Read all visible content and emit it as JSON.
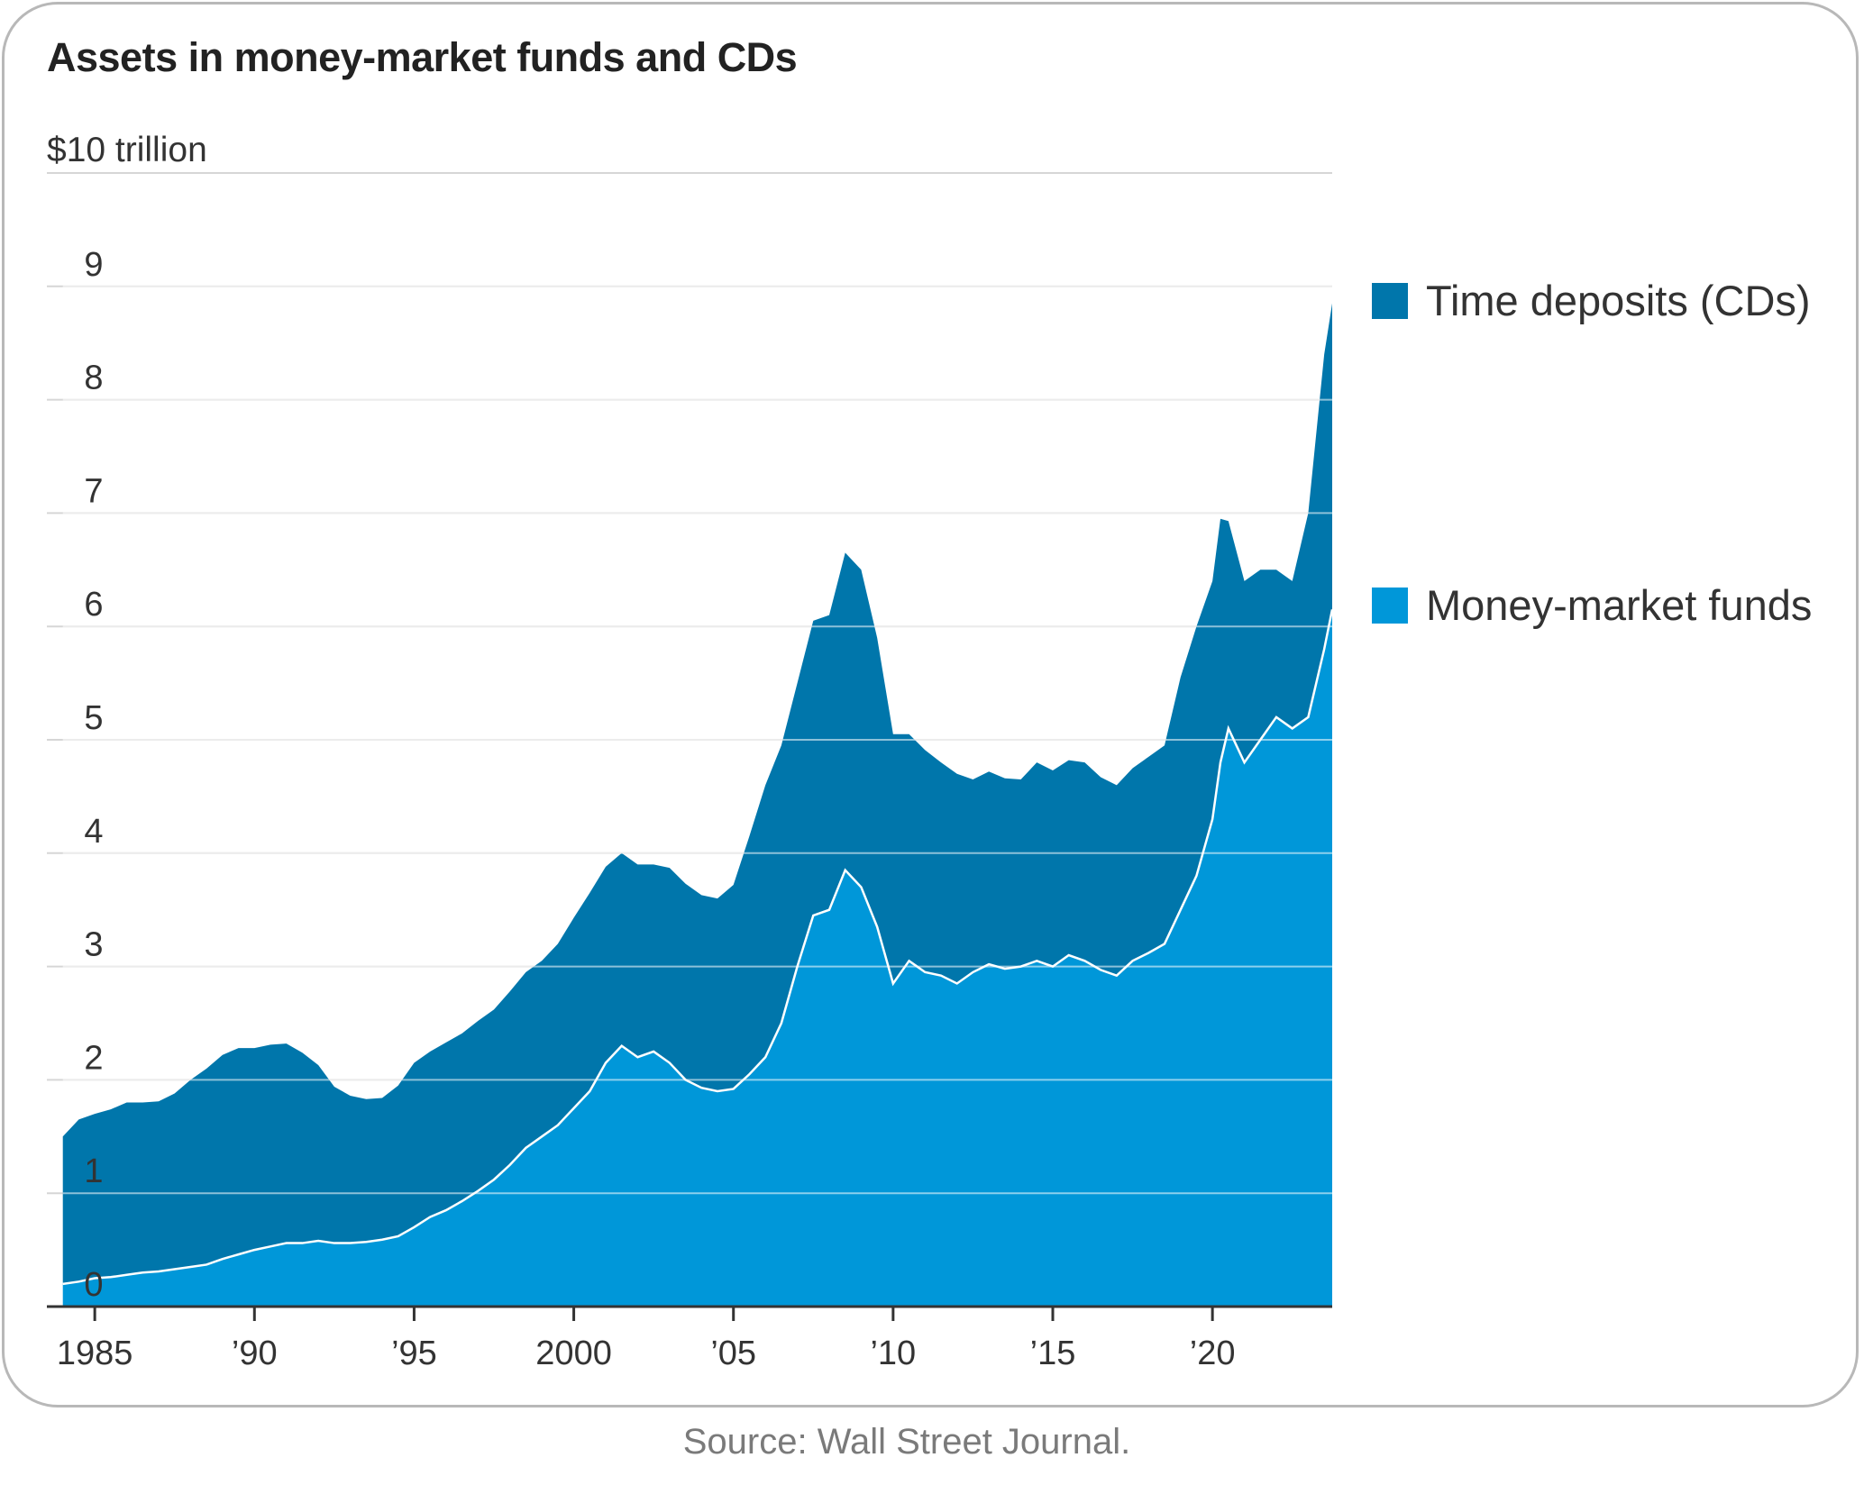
{
  "chart_data": {
    "type": "area",
    "title": "Assets in money-market funds and CDs",
    "unit_label": "$10 trillion",
    "y_tick_labels": [
      "0",
      "1",
      "2",
      "3",
      "4",
      "5",
      "6",
      "7",
      "8",
      "9"
    ],
    "x_tick_labels": [
      "1985",
      "’90",
      "’95",
      "2000",
      "’05",
      "’10",
      "’15",
      "’20"
    ],
    "x_ticks": [
      1985,
      1990,
      1995,
      2000,
      2005,
      2010,
      2015,
      2020
    ],
    "xlim": [
      1983.5,
      2023.75
    ],
    "ylim": [
      0,
      10
    ],
    "stacked": true,
    "grid": true,
    "legend_position": "right",
    "x": [
      1984.0,
      1984.5,
      1985.0,
      1985.5,
      1986.0,
      1986.5,
      1987.0,
      1987.5,
      1988.0,
      1988.5,
      1989.0,
      1989.5,
      1990.0,
      1990.5,
      1991.0,
      1991.5,
      1992.0,
      1992.5,
      1993.0,
      1993.5,
      1994.0,
      1994.5,
      1995.0,
      1995.5,
      1996.0,
      1996.5,
      1997.0,
      1997.5,
      1998.0,
      1998.5,
      1999.0,
      1999.5,
      2000.0,
      2000.5,
      2001.0,
      2001.5,
      2002.0,
      2002.5,
      2003.0,
      2003.5,
      2004.0,
      2004.5,
      2005.0,
      2005.5,
      2006.0,
      2006.5,
      2007.0,
      2007.5,
      2008.0,
      2008.5,
      2009.0,
      2009.5,
      2010.0,
      2010.5,
      2011.0,
      2011.5,
      2012.0,
      2012.5,
      2013.0,
      2013.5,
      2014.0,
      2014.5,
      2015.0,
      2015.5,
      2016.0,
      2016.5,
      2017.0,
      2017.5,
      2018.0,
      2018.5,
      2019.0,
      2019.5,
      2020.0,
      2020.25,
      2020.5,
      2021.0,
      2021.5,
      2022.0,
      2022.5,
      2023.0,
      2023.5,
      2023.75
    ],
    "series": [
      {
        "name": "Money-market funds",
        "color": "#0097d9",
        "values": [
          0.2,
          0.22,
          0.25,
          0.26,
          0.28,
          0.3,
          0.31,
          0.33,
          0.35,
          0.37,
          0.42,
          0.46,
          0.5,
          0.53,
          0.56,
          0.56,
          0.58,
          0.56,
          0.56,
          0.57,
          0.59,
          0.62,
          0.7,
          0.79,
          0.85,
          0.93,
          1.02,
          1.12,
          1.25,
          1.4,
          1.5,
          1.6,
          1.75,
          1.9,
          2.15,
          2.3,
          2.2,
          2.25,
          2.15,
          2.0,
          1.93,
          1.9,
          1.92,
          2.05,
          2.2,
          2.5,
          3.0,
          3.45,
          3.5,
          3.85,
          3.7,
          3.35,
          2.85,
          3.05,
          2.95,
          2.92,
          2.85,
          2.95,
          3.02,
          2.98,
          3.0,
          3.05,
          3.0,
          3.1,
          3.05,
          2.97,
          2.92,
          3.05,
          3.12,
          3.2,
          3.5,
          3.8,
          4.3,
          4.8,
          5.1,
          4.8,
          5.0,
          5.2,
          5.1,
          5.2,
          5.8,
          6.15
        ]
      },
      {
        "name": "Time deposits (CDs)",
        "color": "#0076ab",
        "values": [
          1.3,
          1.43,
          1.45,
          1.48,
          1.52,
          1.5,
          1.5,
          1.55,
          1.65,
          1.73,
          1.8,
          1.82,
          1.78,
          1.78,
          1.76,
          1.68,
          1.55,
          1.38,
          1.3,
          1.26,
          1.25,
          1.33,
          1.45,
          1.46,
          1.48,
          1.48,
          1.5,
          1.5,
          1.53,
          1.55,
          1.55,
          1.6,
          1.68,
          1.75,
          1.73,
          1.7,
          1.7,
          1.65,
          1.72,
          1.73,
          1.7,
          1.7,
          1.8,
          2.1,
          2.4,
          2.45,
          2.5,
          2.6,
          2.6,
          2.8,
          2.8,
          2.55,
          2.2,
          2.0,
          1.96,
          1.88,
          1.85,
          1.7,
          1.7,
          1.68,
          1.65,
          1.75,
          1.73,
          1.72,
          1.75,
          1.7,
          1.68,
          1.7,
          1.73,
          1.75,
          2.05,
          2.2,
          2.1,
          2.15,
          1.83,
          1.6,
          1.5,
          1.3,
          1.3,
          1.8,
          2.6,
          2.7
        ]
      }
    ],
    "line": {
      "color": "#ffffff",
      "follows": "Money-market funds"
    }
  },
  "legend": {
    "cds_label": "Time deposits (CDs)",
    "cds_color": "#0076ab",
    "mmf_label": "Money-market funds",
    "mmf_color": "#0097d9"
  },
  "source": "Source: Wall Street Journal."
}
